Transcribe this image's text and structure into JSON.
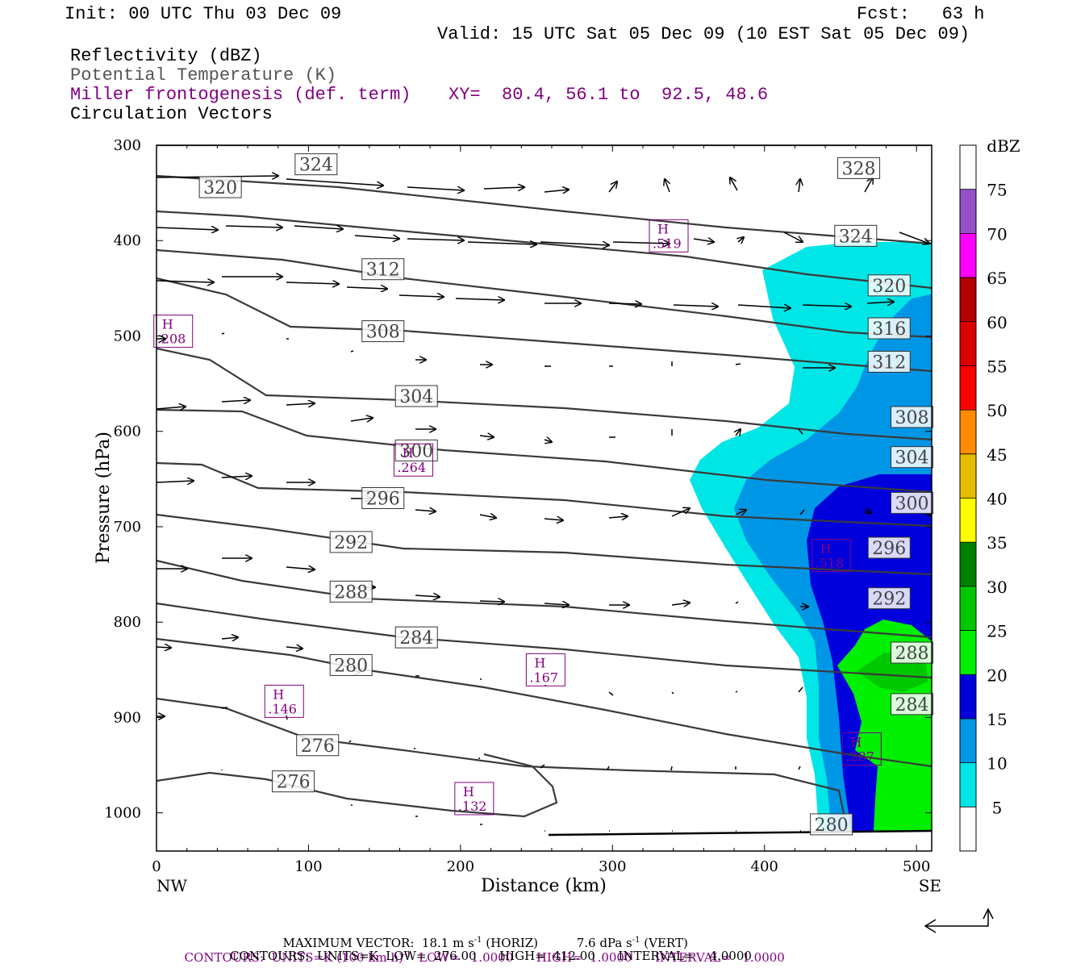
{
  "header": {
    "init": "Init: 00 UTC Thu 03 Dec 09",
    "fcst": "Fcst:   63 h",
    "valid": "Valid: 15 UTC Sat 05 Dec 09 (10 EST Sat 05 Dec 09)",
    "fields": [
      {
        "text": "Reflectivity (dBZ)",
        "color": "#000000"
      },
      {
        "text": "Potential Temperature (K)",
        "color": "#555555"
      },
      {
        "text": "Miller frontogenesis (def. term)",
        "color": "#800080"
      },
      {
        "text": "Circulation Vectors",
        "color": "#000000"
      }
    ],
    "xy": "XY=  80.4, 56.1 to  92.5, 48.6"
  },
  "footer": {
    "vector_prefix": "MAXIMUM VECTOR:  18.1 m s",
    "vector_sup1": "-1",
    "vector_mid": " (HORIZ)          7.6 dPa s",
    "vector_sup2": "-1",
    "vector_suffix": " (VERT)",
    "contours1_prefix": "CONTOURS:  UNITS=K (100 km h)",
    "contours1_sup": "-1",
    "contours1_suffix": "  LOW=   1.0000      HIGH=  1.0000      INTERVAL=   1.0000",
    "contours2": "CONTOURS:  UNITS=K  LOW=  276.00      HIGH=  412.00      INTERVAL=    4.0000"
  },
  "colorbar": {
    "unit": "dBZ",
    "levels": [
      "5",
      "10",
      "15",
      "20",
      "25",
      "30",
      "35",
      "40",
      "45",
      "50",
      "55",
      "60",
      "65",
      "70",
      "75"
    ],
    "colors": [
      "#ffffff",
      "#00e6e6",
      "#0096e6",
      "#0000dc",
      "#00f000",
      "#00c800",
      "#008200",
      "#ffff00",
      "#e6be00",
      "#ff8c00",
      "#ff0000",
      "#dc0000",
      "#b40000",
      "#ff00ff",
      "#9650c8",
      "#ffffff"
    ]
  },
  "chart_data": {
    "type": "cross-section",
    "xlabel": "Distance (km)",
    "ylabel": "Pressure (hPa)",
    "xlim": [
      0,
      510
    ],
    "ylim": [
      1040,
      300
    ],
    "x_ticks": [
      "0",
      "100",
      "200",
      "300",
      "400",
      "500"
    ],
    "y_ticks": [
      "300",
      "400",
      "500",
      "600",
      "700",
      "800",
      "900",
      "1000"
    ],
    "x_end_labels": {
      "left": "NW",
      "right": "SE"
    },
    "theta_labels": [
      {
        "text": "324",
        "x": 105,
        "p": 320
      },
      {
        "text": "320",
        "x": 42,
        "p": 344
      },
      {
        "text": "328",
        "x": 462,
        "p": 324
      },
      {
        "text": "324",
        "x": 460,
        "p": 395
      },
      {
        "text": "312",
        "x": 149,
        "p": 430
      },
      {
        "text": "320",
        "x": 482,
        "p": 447
      },
      {
        "text": "308",
        "x": 149,
        "p": 495
      },
      {
        "text": "316",
        "x": 482,
        "p": 492
      },
      {
        "text": "312",
        "x": 482,
        "p": 527
      },
      {
        "text": "304",
        "x": 171,
        "p": 563
      },
      {
        "text": "308",
        "x": 497,
        "p": 585
      },
      {
        "text": "300",
        "x": 171,
        "p": 620
      },
      {
        "text": "304",
        "x": 497,
        "p": 627
      },
      {
        "text": "296",
        "x": 149,
        "p": 670
      },
      {
        "text": "300",
        "x": 497,
        "p": 675
      },
      {
        "text": "292",
        "x": 128,
        "p": 716
      },
      {
        "text": "296",
        "x": 482,
        "p": 722
      },
      {
        "text": "288",
        "x": 128,
        "p": 768
      },
      {
        "text": "292",
        "x": 482,
        "p": 775
      },
      {
        "text": "284",
        "x": 171,
        "p": 816
      },
      {
        "text": "288",
        "x": 497,
        "p": 832
      },
      {
        "text": "280",
        "x": 128,
        "p": 845
      },
      {
        "text": "284",
        "x": 497,
        "p": 886
      },
      {
        "text": "276",
        "x": 106,
        "p": 929
      },
      {
        "text": "276",
        "x": 90,
        "p": 967
      },
      {
        "text": "280",
        "x": 444,
        "p": 1012
      }
    ],
    "highs": [
      {
        "x": 11,
        "p": 495,
        "label": "H",
        "value": ".208"
      },
      {
        "x": 337,
        "p": 395,
        "label": "H",
        "value": ".519"
      },
      {
        "x": 169,
        "p": 630,
        "label": "H",
        "value": ".264"
      },
      {
        "x": 444,
        "p": 730,
        "label": "H",
        "value": ".518"
      },
      {
        "x": 256,
        "p": 850,
        "label": "H",
        "value": ".167"
      },
      {
        "x": 84,
        "p": 883,
        "label": "H",
        "value": ".146"
      },
      {
        "x": 464,
        "p": 933,
        "label": "H",
        "value": ".287"
      },
      {
        "x": 209,
        "p": 985,
        "label": "H",
        "value": ".132"
      }
    ],
    "reflectivity_levels_dbz": [
      5,
      10,
      15,
      20,
      25
    ]
  }
}
